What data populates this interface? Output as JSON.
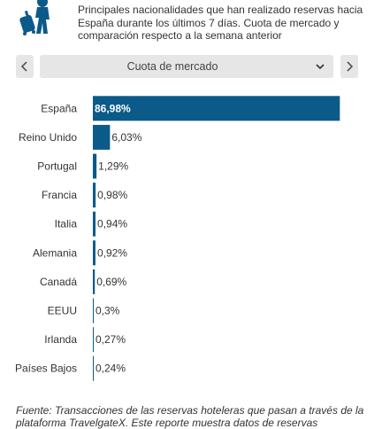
{
  "header": {
    "description": "Principales nacionalidades que han realizado reservas hacia España durante los últimos 7 días. Cuota de mercado y comparación respecto a la semana anterior"
  },
  "controls": {
    "selected": "Cuota de mercado",
    "prev_icon": "chevron-left-icon",
    "next_icon": "chevron-right-icon"
  },
  "chart_data": {
    "type": "bar",
    "orientation": "horizontal",
    "categories": [
      "España",
      "Reino Unido",
      "Portugal",
      "Francia",
      "Italia",
      "Alemania",
      "Canadá",
      "EEUU",
      "Irlanda",
      "Países Bajos"
    ],
    "values": [
      86.98,
      6.03,
      1.29,
      0.98,
      0.94,
      0.92,
      0.69,
      0.3,
      0.27,
      0.24
    ],
    "labels": [
      "86,98%",
      "6,03%",
      "1,29%",
      "0,98%",
      "0,94%",
      "0,92%",
      "0,69%",
      "0,3%",
      "0,27%",
      "0,24%"
    ],
    "xlim": [
      0,
      90
    ],
    "bar_color": "#0b5a8a",
    "grid": false
  },
  "footer": {
    "source_line1": "Fuente: Transacciones de las reservas hoteleras que pasan a través de la",
    "source_line2": "plataforma TravelgateX. Este reporte muestra datos de reservas"
  },
  "colors": {
    "accent": "#0b5a8a",
    "control_bg": "#e6e6e6"
  }
}
